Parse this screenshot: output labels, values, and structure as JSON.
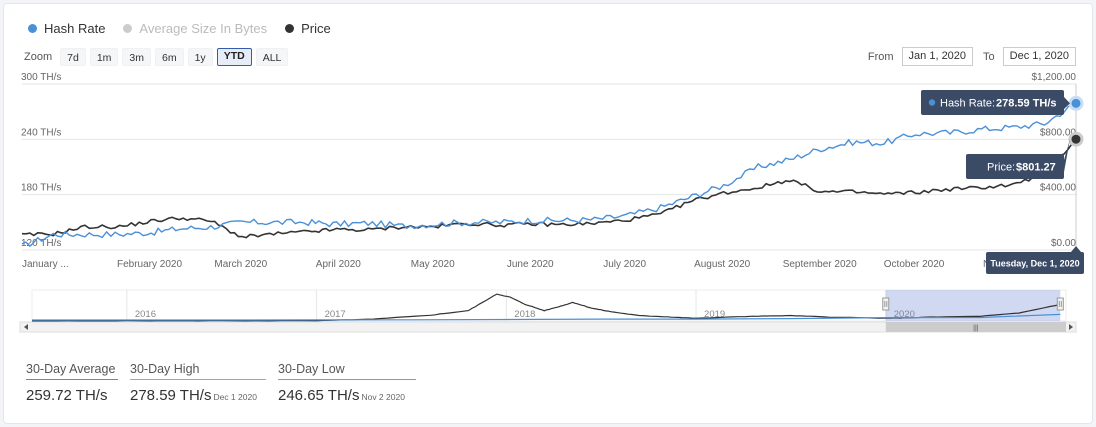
{
  "legend": {
    "items": [
      {
        "label": "Hash Rate",
        "color": "#4a90d9"
      },
      {
        "label": "Average Size In Bytes",
        "color": "#cccccc"
      },
      {
        "label": "Price",
        "color": "#333333"
      }
    ]
  },
  "zoom": {
    "label": "Zoom",
    "buttons": [
      "7d",
      "1m",
      "3m",
      "6m",
      "1y",
      "YTD",
      "ALL"
    ],
    "active": "YTD"
  },
  "range": {
    "from_label": "From",
    "from_value": "Jan 1, 2020",
    "to_label": "To",
    "to_value": "Dec 1, 2020"
  },
  "tooltips": {
    "hash": {
      "label": "Hash Rate:",
      "value": "278.59 TH/s"
    },
    "price": {
      "label": "Price:",
      "value": "$801.27"
    },
    "date": "Tuesday, Dec 1, 2020"
  },
  "chart_data": {
    "type": "line",
    "title": "",
    "y_left": {
      "ticks": [
        "300 TH/s",
        "240 TH/s",
        "180 TH/s",
        "120 TH/s"
      ],
      "range": [
        120,
        300
      ]
    },
    "y_right": {
      "ticks": [
        "$1,200.00",
        "$800.00",
        "$400.00",
        "$0.00"
      ],
      "range": [
        0,
        1200
      ]
    },
    "x_labels": [
      "January ...",
      "February 2020",
      "March 2020",
      "April 2020",
      "May 2020",
      "June 2020",
      "July 2020",
      "August 2020",
      "September 2020",
      "October 2020",
      "November ..."
    ],
    "x_range": [
      0,
      335
    ],
    "series": [
      {
        "name": "Hash Rate",
        "color": "#4a90d9",
        "x": [
          0,
          10,
          20,
          31,
          41,
          50,
          60,
          70,
          80,
          91,
          100,
          110,
          121,
          131,
          141,
          152,
          162,
          172,
          182,
          192,
          203,
          213,
          223,
          234,
          244,
          254,
          264,
          274,
          284,
          295,
          305,
          315,
          325,
          335
        ],
        "y": [
          124,
          137,
          137,
          137,
          139,
          143,
          145,
          150,
          150,
          150,
          148,
          149,
          146,
          148,
          150,
          150,
          152,
          152,
          153,
          157,
          166,
          178,
          190,
          210,
          218,
          230,
          237,
          236,
          246,
          247,
          251,
          253,
          257,
          279
        ]
      },
      {
        "name": "Price",
        "color": "#333333",
        "x": [
          0,
          10,
          20,
          31,
          41,
          50,
          60,
          70,
          80,
          91,
          100,
          110,
          121,
          131,
          141,
          152,
          162,
          172,
          182,
          192,
          203,
          213,
          223,
          234,
          244,
          254,
          264,
          274,
          284,
          295,
          305,
          315,
          325,
          335
        ],
        "y": [
          108,
          116,
          168,
          168,
          208,
          232,
          210,
          92,
          115,
          132,
          148,
          145,
          168,
          168,
          192,
          180,
          188,
          184,
          192,
          216,
          260,
          356,
          412,
          452,
          508,
          420,
          420,
          404,
          416,
          440,
          452,
          472,
          548,
          801
        ]
      }
    ],
    "navigator": {
      "x_labels": [
        "2016",
        "2017",
        "2018",
        "2019",
        "2020"
      ],
      "x_range": [
        2015.5,
        2020.95
      ],
      "selected_range": [
        2020.0,
        2020.92
      ],
      "price": {
        "x": [
          2015.5,
          2016.0,
          2016.5,
          2017.0,
          2017.3,
          2017.6,
          2017.8,
          2017.95,
          2018.02,
          2018.1,
          2018.2,
          2018.3,
          2018.35,
          2018.45,
          2018.55,
          2018.7,
          2018.85,
          2019.0,
          2019.3,
          2019.5,
          2019.7,
          2020.0,
          2020.2,
          2020.5,
          2020.7,
          2020.92
        ],
        "y": [
          1,
          10,
          12,
          12,
          90,
          280,
          500,
          1300,
          1150,
          800,
          500,
          750,
          900,
          620,
          450,
          260,
          200,
          130,
          230,
          260,
          190,
          130,
          180,
          230,
          380,
          801
        ]
      },
      "hash": {
        "x": [
          2015.5,
          2016.0,
          2016.5,
          2017.0,
          2017.5,
          2018.0,
          2018.5,
          2019.0,
          2019.5,
          2020.0,
          2020.5,
          2020.92
        ],
        "y": [
          0.5,
          1,
          2,
          3,
          8,
          25,
          45,
          45,
          70,
          120,
          125,
          279
        ]
      }
    }
  },
  "stats": [
    {
      "title": "30-Day Average",
      "value": "259.72 TH/s",
      "date": "",
      "color": "#4a90d9"
    },
    {
      "title": "30-Day High",
      "value": "278.59 TH/s",
      "date": "Dec 1 2020",
      "color": "#8dc63f"
    },
    {
      "title": "30-Day Low",
      "value": "246.65 TH/s",
      "date": "Nov 2 2020",
      "color": "#e08a2e"
    }
  ]
}
